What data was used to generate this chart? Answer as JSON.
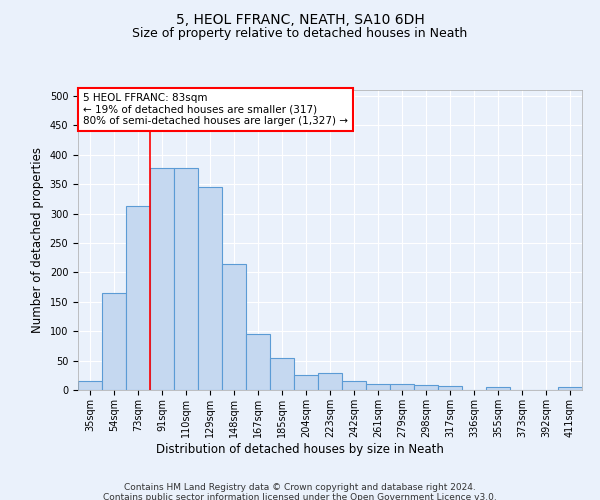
{
  "title": "5, HEOL FFRANC, NEATH, SA10 6DH",
  "subtitle": "Size of property relative to detached houses in Neath",
  "xlabel": "Distribution of detached houses by size in Neath",
  "ylabel": "Number of detached properties",
  "categories": [
    "35sqm",
    "54sqm",
    "73sqm",
    "91sqm",
    "110sqm",
    "129sqm",
    "148sqm",
    "167sqm",
    "185sqm",
    "204sqm",
    "223sqm",
    "242sqm",
    "261sqm",
    "279sqm",
    "298sqm",
    "317sqm",
    "336sqm",
    "355sqm",
    "373sqm",
    "392sqm",
    "411sqm"
  ],
  "bar_heights": [
    15,
    165,
    313,
    377,
    377,
    345,
    215,
    95,
    55,
    25,
    29,
    15,
    10,
    10,
    8,
    6,
    0,
    5,
    0,
    0,
    5
  ],
  "bar_color": "#c5d8f0",
  "bar_edge_color": "#5b9bd5",
  "bar_edge_width": 0.8,
  "vline_x": 2.5,
  "vline_color": "red",
  "vline_linewidth": 1.2,
  "ylim": [
    0,
    510
  ],
  "yticks": [
    0,
    50,
    100,
    150,
    200,
    250,
    300,
    350,
    400,
    450,
    500
  ],
  "annotation_text": "5 HEOL FFRANC: 83sqm\n← 19% of detached houses are smaller (317)\n80% of semi-detached houses are larger (1,327) →",
  "annotation_box_color": "white",
  "annotation_box_edge": "red",
  "footer_text": "Contains HM Land Registry data © Crown copyright and database right 2024.\nContains public sector information licensed under the Open Government Licence v3.0.",
  "background_color": "#eaf1fb",
  "grid_color": "white",
  "title_fontsize": 10,
  "subtitle_fontsize": 9,
  "axis_label_fontsize": 8.5,
  "tick_fontsize": 7,
  "footer_fontsize": 6.5,
  "annot_fontsize": 7.5
}
